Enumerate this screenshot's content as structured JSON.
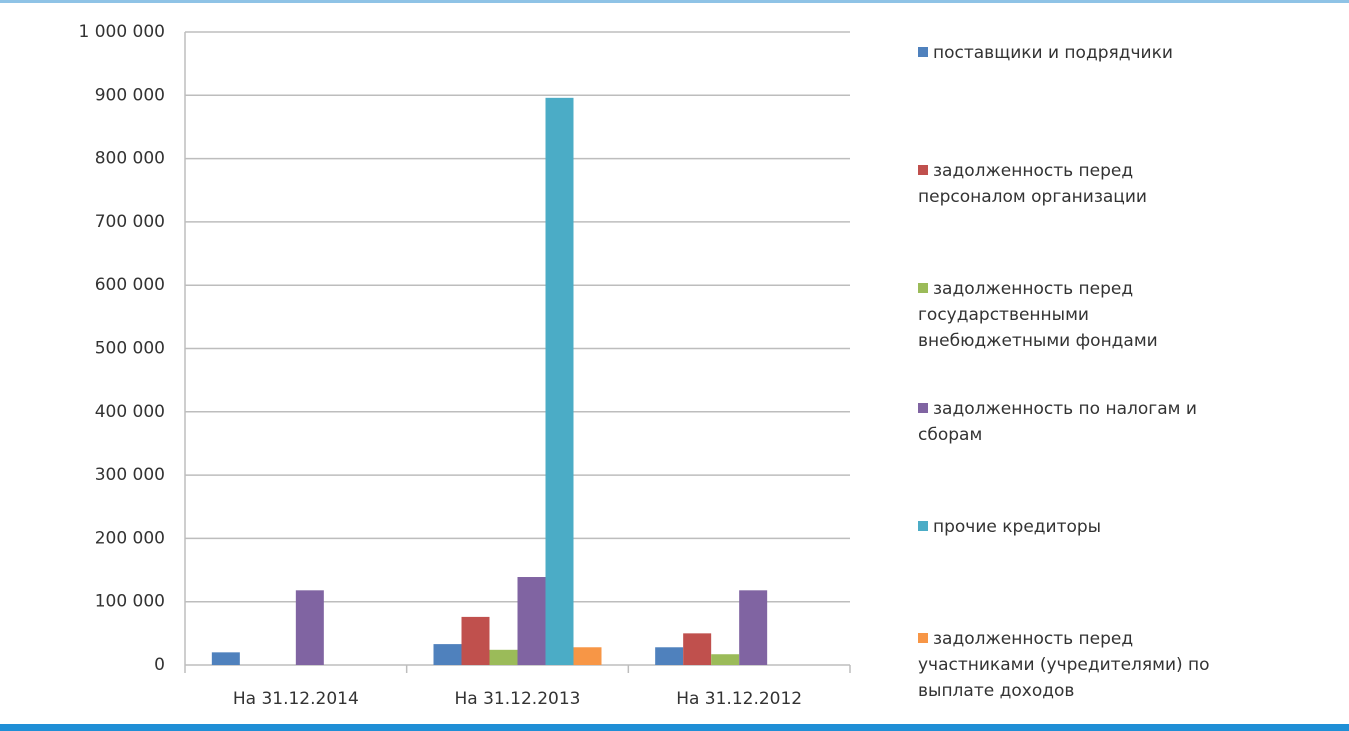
{
  "chart_data": {
    "type": "bar",
    "categories": [
      "На 31.12.2014",
      "На 31.12.2013",
      "На 31.12.2012"
    ],
    "series": [
      {
        "name": "поставщики и подрядчики",
        "color": "#4f81bd",
        "values": [
          20000,
          33000,
          28000
        ]
      },
      {
        "name": "задолженность перед персоналом организации",
        "color": "#c0504d",
        "values": [
          0,
          76000,
          50000
        ]
      },
      {
        "name": "задолженность перед государственными внебюджетными фондами",
        "color": "#9bbb59",
        "values": [
          0,
          24000,
          17000
        ]
      },
      {
        "name": "задолженность по налогам и сборам",
        "color": "#8064a2",
        "values": [
          118000,
          139000,
          118000
        ]
      },
      {
        "name": "прочие кредиторы",
        "color": "#4bacc6",
        "values": [
          0,
          896000,
          0
        ]
      },
      {
        "name": "задолженность перед участниками (учредителями) по выплате доходов",
        "color": "#f79646",
        "values": [
          0,
          28000,
          0
        ]
      }
    ],
    "ylim": [
      0,
      1000000
    ],
    "yticks": [
      0,
      {
        "value": 100000,
        "label": "100 000"
      },
      {
        "value": 200000,
        "label": "200 000"
      },
      {
        "value": 300000,
        "label": "300 000"
      },
      {
        "value": 400000,
        "label": "400 000"
      },
      {
        "value": 500000,
        "label": "500 000"
      },
      {
        "value": 600000,
        "label": "600 000"
      },
      {
        "value": 700000,
        "label": "700 000"
      },
      {
        "value": 800000,
        "label": "800 000"
      },
      {
        "value": 900000,
        "label": "900 000"
      },
      {
        "value": 1000000,
        "label": "1 000 000"
      }
    ],
    "grid": true,
    "legend": "right"
  }
}
